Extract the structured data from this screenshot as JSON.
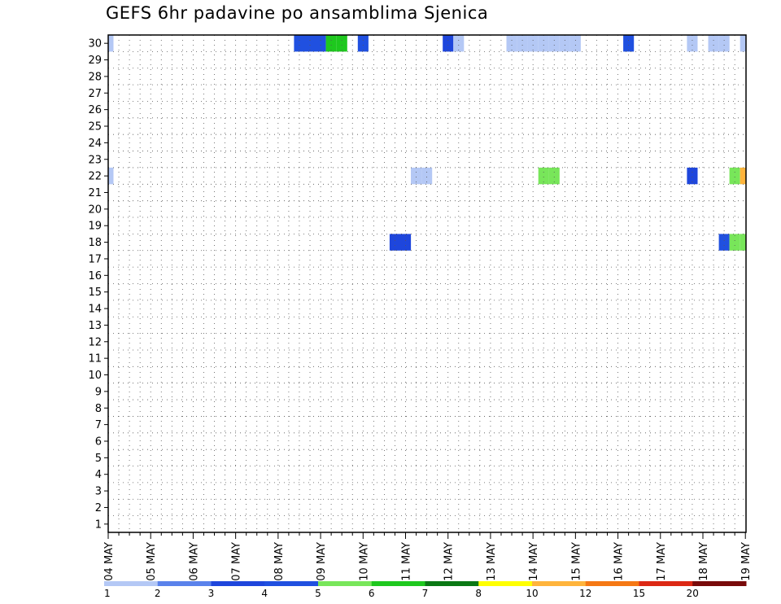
{
  "title": "GEFS 6hr padavine po ansamblima Sjenica",
  "chart_data": {
    "type": "heatmap",
    "title": "GEFS 6hr padavine po ansamblima Sjenica",
    "x_tick_labels": [
      "04 MAY",
      "05 MAY",
      "06 MAY",
      "07 MAY",
      "08 MAY",
      "09 MAY",
      "10 MAY",
      "11 MAY",
      "12 MAY",
      "13 MAY",
      "14 MAY",
      "15 MAY",
      "16 MAY",
      "17 MAY",
      "18 MAY",
      "19 MAY"
    ],
    "y_tick_labels": [
      "1",
      "2",
      "3",
      "4",
      "5",
      "6",
      "7",
      "8",
      "9",
      "10",
      "11",
      "12",
      "13",
      "14",
      "15",
      "16",
      "17",
      "18",
      "19",
      "20",
      "21",
      "22",
      "23",
      "24",
      "25",
      "26",
      "27",
      "28",
      "29",
      "30"
    ],
    "xlim": [
      "04 MAY",
      "19 MAY"
    ],
    "ylim": [
      0,
      30
    ],
    "grid": "dotted",
    "colorbar": {
      "labels": [
        "1",
        "2",
        "3",
        "4",
        "5",
        "6",
        "7",
        "8",
        "10",
        "12",
        "15",
        "20"
      ],
      "colors": [
        "#b4c8f5",
        "#5a82eb",
        "#1e46dc",
        "#2050e0",
        "#78e65a",
        "#1ec81e",
        "#0a7814",
        "#ffff00",
        "#ffb43c",
        "#f57814",
        "#dc2814",
        "#780a0a"
      ]
    },
    "members": [
      {
        "member": 30,
        "cells": [
          [
            1,
            1
          ],
          [
            19,
            4
          ],
          [
            20,
            4
          ],
          [
            21,
            4
          ],
          [
            22,
            6
          ],
          [
            23,
            6
          ],
          [
            25,
            4
          ],
          [
            33,
            3
          ],
          [
            34,
            1
          ],
          [
            39,
            1
          ],
          [
            40,
            1
          ],
          [
            41,
            1
          ],
          [
            42,
            1
          ],
          [
            43,
            1
          ],
          [
            44,
            1
          ],
          [
            45,
            1
          ],
          [
            50,
            4
          ],
          [
            56,
            1
          ],
          [
            58,
            1
          ],
          [
            59,
            1
          ],
          [
            61,
            1
          ],
          [
            65,
            3
          ],
          [
            66,
            3
          ],
          [
            67,
            1
          ],
          [
            68,
            1
          ],
          [
            70,
            1
          ],
          [
            86,
            10
          ],
          [
            87,
            10
          ],
          [
            88,
            10
          ],
          [
            89,
            10
          ],
          [
            90,
            10
          ],
          [
            117,
            1
          ],
          [
            118,
            1
          ],
          [
            119,
            1
          ],
          [
            120,
            1
          ],
          [
            125,
            1
          ],
          [
            126,
            1
          ],
          [
            127,
            1
          ],
          [
            128,
            1
          ],
          [
            149,
            11
          ],
          [
            150,
            11
          ],
          [
            153,
            1
          ],
          [
            154,
            1
          ],
          [
            155,
            1
          ],
          [
            156,
            1
          ],
          [
            157,
            1
          ],
          [
            158,
            1
          ],
          [
            159,
            1
          ],
          [
            168,
            1
          ],
          [
            186,
            1
          ],
          [
            187,
            1
          ],
          [
            213,
            10
          ],
          [
            214,
            10
          ],
          [
            235,
            2
          ],
          [
            236,
            2
          ],
          [
            242,
            1
          ],
          [
            243,
            1
          ],
          [
            244,
            1
          ],
          [
            245,
            1
          ],
          [
            246,
            1
          ]
        ]
      },
      {
        "member": 22,
        "cells": [
          [
            1,
            1
          ],
          [
            30,
            1
          ],
          [
            31,
            1
          ],
          [
            42,
            5
          ],
          [
            43,
            5
          ],
          [
            56,
            3
          ],
          [
            60,
            5
          ],
          [
            61,
            9
          ],
          [
            62,
            13
          ],
          [
            63,
            5
          ],
          [
            64,
            5
          ],
          [
            65,
            3
          ],
          [
            66,
            1
          ],
          [
            68,
            1
          ],
          [
            72,
            1
          ],
          [
            73,
            1
          ],
          [
            75,
            1
          ],
          [
            76,
            1
          ],
          [
            77,
            5
          ],
          [
            80,
            5
          ],
          [
            81,
            5
          ],
          [
            82,
            1
          ],
          [
            83,
            1
          ],
          [
            84,
            1
          ],
          [
            85,
            1
          ],
          [
            86,
            1
          ],
          [
            87,
            1
          ],
          [
            89,
            1
          ],
          [
            90,
            6
          ],
          [
            91,
            7
          ],
          [
            92,
            7
          ],
          [
            93,
            1
          ],
          [
            94,
            1
          ],
          [
            95,
            1
          ],
          [
            96,
            1
          ],
          [
            97,
            1
          ],
          [
            98,
            5
          ],
          [
            99,
            5
          ],
          [
            100,
            5
          ],
          [
            101,
            9
          ],
          [
            102,
            2
          ],
          [
            103,
            1
          ],
          [
            107,
            1
          ],
          [
            108,
            1
          ],
          [
            109,
            1
          ],
          [
            123,
            1
          ],
          [
            124,
            1
          ],
          [
            128,
            2
          ],
          [
            129,
            2
          ],
          [
            139,
            1
          ],
          [
            140,
            1
          ],
          [
            141,
            1
          ],
          [
            142,
            1
          ],
          [
            146,
            1
          ],
          [
            147,
            1
          ],
          [
            153,
            1
          ],
          [
            154,
            1
          ],
          [
            175,
            1
          ],
          [
            176,
            1
          ]
        ]
      },
      {
        "member": 18,
        "cells": [
          [
            28,
            3
          ],
          [
            29,
            3
          ],
          [
            59,
            4
          ],
          [
            60,
            5
          ],
          [
            61,
            5
          ],
          [
            62,
            5
          ],
          [
            64,
            4
          ],
          [
            66,
            4
          ],
          [
            67,
            5
          ],
          [
            68,
            5
          ],
          [
            69,
            5
          ],
          [
            70,
            5
          ],
          [
            71,
            5
          ],
          [
            72,
            5
          ],
          [
            73,
            5
          ],
          [
            74,
            5
          ],
          [
            75,
            5
          ],
          [
            76,
            5
          ],
          [
            77,
            5
          ],
          [
            78,
            5
          ],
          [
            79,
            5
          ],
          [
            80,
            5
          ],
          [
            81,
            5
          ],
          [
            82,
            5
          ],
          [
            84,
            5
          ],
          [
            88,
            5
          ],
          [
            89,
            5
          ],
          [
            99,
            3
          ],
          [
            100,
            10
          ],
          [
            101,
            5
          ],
          [
            102,
            5
          ],
          [
            103,
            7
          ],
          [
            104,
            7
          ],
          [
            105,
            7
          ],
          [
            107,
            7
          ],
          [
            108,
            7
          ],
          [
            112,
            1
          ],
          [
            113,
            1
          ],
          [
            114,
            1
          ],
          [
            115,
            1
          ],
          [
            116,
            1
          ],
          [
            118,
            1
          ],
          [
            119,
            1
          ],
          [
            120,
            1
          ],
          [
            121,
            1
          ],
          [
            122,
            1
          ],
          [
            123,
            4
          ],
          [
            124,
            4
          ],
          [
            125,
            4
          ],
          [
            126,
            4
          ]
        ]
      }
    ]
  }
}
